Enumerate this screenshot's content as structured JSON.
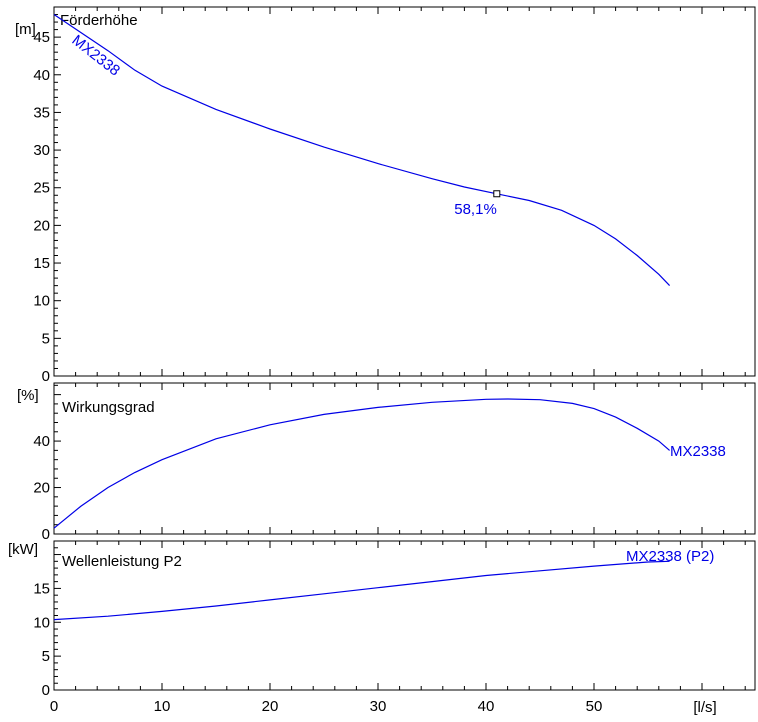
{
  "chart_data": [
    {
      "type": "line",
      "title": "Förderhöhe",
      "ylabel": "[m]",
      "ylim": [
        0,
        49
      ],
      "yticks": [
        0,
        5,
        10,
        15,
        20,
        25,
        30,
        35,
        40,
        45
      ],
      "xlim": [
        0,
        60
      ],
      "series": [
        {
          "name": "MX2338",
          "x": [
            0,
            2.5,
            5,
            7.5,
            10,
            15,
            20,
            25,
            30,
            35,
            38,
            41,
            44,
            47,
            50,
            52,
            54,
            56,
            57
          ],
          "values": [
            48,
            45.6,
            43.2,
            40.6,
            38.5,
            35.4,
            32.8,
            30.4,
            28.2,
            26.2,
            25.1,
            24.2,
            23.3,
            22,
            20,
            18.2,
            16,
            13.5,
            12
          ]
        }
      ],
      "annotation": {
        "x": 41,
        "y": 24.2,
        "text": "58,1%"
      }
    },
    {
      "type": "line",
      "title": "Wirkungsgrad",
      "ylabel": "[%]",
      "ylim": [
        0,
        65
      ],
      "yticks": [
        0,
        20,
        40
      ],
      "xlim": [
        0,
        60
      ],
      "series": [
        {
          "name": "MX2338",
          "x": [
            0,
            2.5,
            5,
            7.5,
            10,
            15,
            20,
            25,
            30,
            35,
            40,
            42,
            45,
            48,
            50,
            52,
            54,
            56,
            57
          ],
          "values": [
            2.5,
            12,
            20,
            26.5,
            32,
            41,
            47,
            51.5,
            54.5,
            56.7,
            58,
            58.1,
            57.8,
            56.2,
            54,
            50.3,
            45.5,
            40,
            36
          ]
        }
      ]
    },
    {
      "type": "line",
      "title": "Wellenleistung P2",
      "ylabel": "[kW]",
      "ylim": [
        0,
        22
      ],
      "yticks": [
        0,
        5,
        10,
        15
      ],
      "xlim": [
        0,
        60
      ],
      "xlabel": "[l/s]",
      "xticks": [
        0,
        10,
        20,
        30,
        40,
        50
      ],
      "series": [
        {
          "name": "MX2338 (P2)",
          "x": [
            0,
            5,
            10,
            15,
            20,
            25,
            30,
            35,
            40,
            45,
            50,
            55,
            57
          ],
          "values": [
            10.4,
            10.9,
            11.6,
            12.4,
            13.3,
            14.2,
            15.1,
            16,
            16.9,
            17.6,
            18.3,
            18.9,
            19
          ]
        }
      ]
    }
  ]
}
